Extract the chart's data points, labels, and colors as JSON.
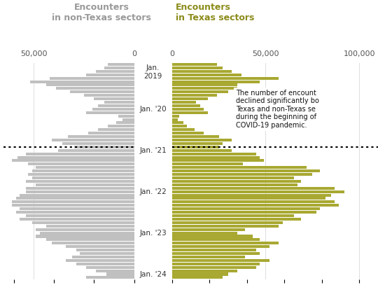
{
  "title_left": "Encounters\nin non-Texas sectors",
  "title_right": "Encounters\nin Texas sectors",
  "title_left_color": "#999999",
  "title_right_color": "#8B8B1A",
  "bar_color_left": "#c0c0c0",
  "bar_color_right": "#a8a832",
  "background_color": "#ffffff",
  "center_bg": "#ffffff",
  "annotation_text": "The number of encount\ndeclined significantly bo\nTexas and non-Texas se\nduring the beginning of\nCOVID-19 pandemic.",
  "non_texas": [
    13000,
    15000,
    19000,
    24000,
    42000,
    52000,
    44000,
    39000,
    32000,
    25000,
    20000,
    15000,
    18000,
    21000,
    24000,
    8000,
    6000,
    9000,
    13000,
    18000,
    23000,
    33000,
    41000,
    36000,
    30000,
    38000,
    54000,
    58000,
    61000,
    53000,
    49000,
    51000,
    53000,
    51000,
    54000,
    49000,
    54000,
    54000,
    57000,
    59000,
    61000,
    61000,
    57000,
    59000,
    54000,
    57000,
    51000,
    44000,
    49000,
    47000,
    49000,
    44000,
    41000,
    34000,
    29000,
    27000,
    31000,
    34000,
    29000,
    24000,
    19000,
    14000,
    24000
  ],
  "texas": [
    24000,
    27000,
    32000,
    37000,
    57000,
    47000,
    35000,
    35000,
    30000,
    24000,
    19000,
    13000,
    15000,
    17000,
    19000,
    4000,
    3000,
    6000,
    8000,
    12000,
    17000,
    25000,
    32000,
    27000,
    25000,
    32000,
    45000,
    47000,
    49000,
    38000,
    72000,
    79000,
    75000,
    65000,
    69000,
    67000,
    87000,
    92000,
    85000,
    82000,
    87000,
    89000,
    79000,
    77000,
    65000,
    69000,
    59000,
    57000,
    39000,
    35000,
    43000,
    47000,
    57000,
    52000,
    45000,
    47000,
    39000,
    52000,
    47000,
    45000,
    35000,
    30000,
    27000
  ],
  "year_labels": [
    {
      "text": "Jan.\n2019",
      "index": 0
    },
    {
      "text": "Jan. '20",
      "index": 12
    },
    {
      "text": "Jan. '21",
      "index": 24
    },
    {
      "text": "Jan. '22",
      "index": 36
    },
    {
      "text": "Jan. '23",
      "index": 48
    },
    {
      "text": "Jan. '24",
      "index": 60
    }
  ],
  "dotted_line_index": 24,
  "left_xlim": 65000,
  "right_xlim": 110000
}
